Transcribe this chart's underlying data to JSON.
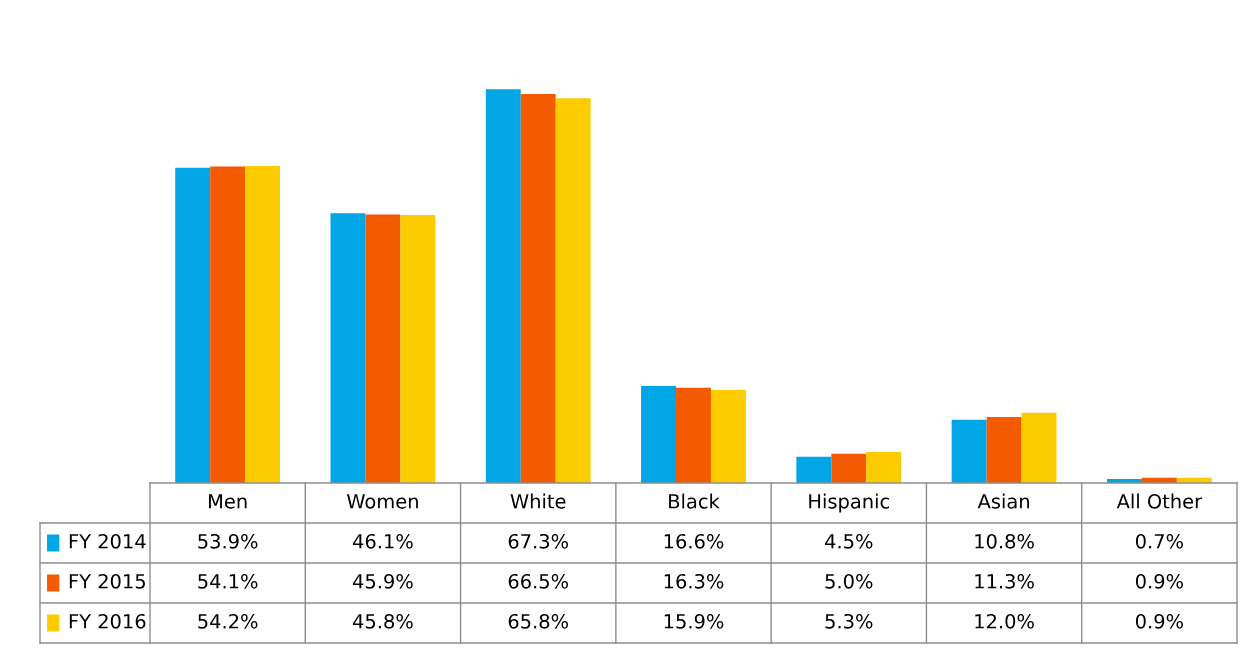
{
  "chart_data": {
    "type": "bar",
    "categories": [
      "Men",
      "Women",
      "White",
      "Black",
      "Hispanic",
      "Asian",
      "All Other"
    ],
    "series": [
      {
        "name": "FY 2014",
        "color": "#00a6e6",
        "values": [
          53.9,
          46.1,
          67.3,
          16.6,
          4.5,
          10.8,
          0.7
        ],
        "value_labels": [
          "53.9%",
          "46.1%",
          "67.3%",
          "16.6%",
          "4.5%",
          "10.8%",
          "0.7%"
        ]
      },
      {
        "name": "FY 2015",
        "color": "#f45b00",
        "values": [
          54.1,
          45.9,
          66.5,
          16.3,
          5.0,
          11.3,
          0.9
        ],
        "value_labels": [
          "54.1%",
          "45.9%",
          "66.5%",
          "16.3%",
          "5.0%",
          "11.3%",
          "0.9%"
        ]
      },
      {
        "name": "FY 2016",
        "color": "#fccb00",
        "values": [
          54.2,
          45.8,
          65.8,
          15.9,
          5.3,
          12.0,
          0.9
        ],
        "value_labels": [
          "54.2%",
          "45.8%",
          "65.8%",
          "15.9%",
          "5.3%",
          "12.0%",
          "0.9%"
        ]
      }
    ],
    "legend": "bottom left"
  }
}
